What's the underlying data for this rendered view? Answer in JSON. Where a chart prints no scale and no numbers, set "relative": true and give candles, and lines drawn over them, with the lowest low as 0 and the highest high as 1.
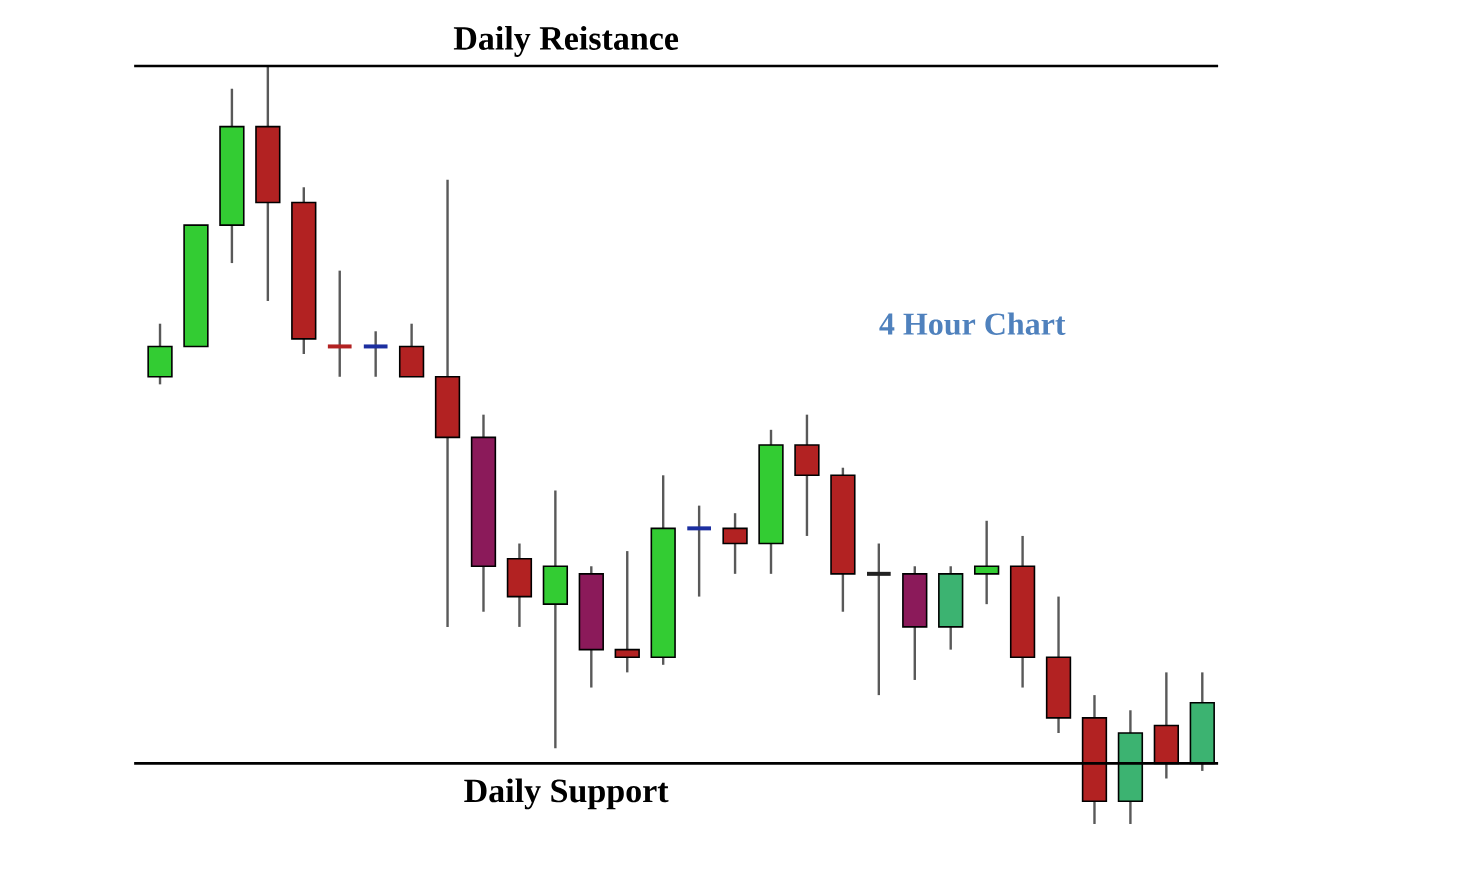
{
  "chart_data": {
    "type": "candlestick",
    "relative": true,
    "categories": [
      null,
      null,
      null,
      null,
      null,
      null,
      null,
      null,
      null,
      null,
      null,
      null,
      null,
      null,
      null,
      null,
      null,
      null,
      null,
      null,
      null,
      null,
      null,
      null,
      null,
      null,
      null,
      null,
      null,
      null
    ],
    "ohlc": [
      [
        0.59,
        0.66,
        0.58,
        0.63
      ],
      [
        0.63,
        0.79,
        0.63,
        0.79
      ],
      [
        0.79,
        0.97,
        0.74,
        0.92
      ],
      [
        0.92,
        1.0,
        0.69,
        0.82
      ],
      [
        0.82,
        0.84,
        0.62,
        0.64
      ],
      [
        0.63,
        0.73,
        0.59,
        0.63
      ],
      [
        0.63,
        0.65,
        0.59,
        0.63
      ],
      [
        0.63,
        0.66,
        0.59,
        0.59
      ],
      [
        0.59,
        0.85,
        0.26,
        0.51
      ],
      [
        0.51,
        0.54,
        0.28,
        0.34
      ],
      [
        0.35,
        0.37,
        0.26,
        0.3
      ],
      [
        0.29,
        0.44,
        0.1,
        0.34
      ],
      [
        0.33,
        0.34,
        0.18,
        0.23
      ],
      [
        0.23,
        0.36,
        0.2,
        0.22
      ],
      [
        0.22,
        0.46,
        0.21,
        0.39
      ],
      [
        0.39,
        0.42,
        0.3,
        0.39
      ],
      [
        0.39,
        0.41,
        0.33,
        0.37
      ],
      [
        0.37,
        0.52,
        0.33,
        0.5
      ],
      [
        0.5,
        0.54,
        0.38,
        0.46
      ],
      [
        0.46,
        0.47,
        0.28,
        0.33
      ],
      [
        0.33,
        0.37,
        0.17,
        0.33
      ],
      [
        0.33,
        0.34,
        0.19,
        0.26
      ],
      [
        0.26,
        0.34,
        0.23,
        0.33
      ],
      [
        0.33,
        0.4,
        0.29,
        0.34
      ],
      [
        0.34,
        0.38,
        0.18,
        0.22
      ],
      [
        0.22,
        0.3,
        0.12,
        0.14
      ],
      [
        0.14,
        0.17,
        0.0,
        0.03
      ],
      [
        0.03,
        0.15,
        0.0,
        0.12
      ],
      [
        0.13,
        0.2,
        0.06,
        0.08
      ],
      [
        0.08,
        0.2,
        0.07,
        0.16
      ]
    ],
    "colors": [
      "#33cc33",
      "#33cc33",
      "#33cc33",
      "#b22222",
      "#b22222",
      "#b22222",
      "#1c2fa0",
      "#b22222",
      "#b22222",
      "#8b1a5a",
      "#b22222",
      "#33cc33",
      "#8b1a5a",
      "#b22222",
      "#33cc33",
      "#1c2fa0",
      "#b22222",
      "#33cc33",
      "#b22222",
      "#b22222",
      "#222222",
      "#8b1a5a",
      "#3cb371",
      "#33cc33",
      "#b22222",
      "#b22222",
      "#b22222",
      "#3cb371",
      "#b22222",
      "#3cb371"
    ],
    "ref_lines": [
      {
        "axis": "y",
        "value": 1.0,
        "label": "Daily Reistance",
        "color": "#000000"
      },
      {
        "axis": "y",
        "value": 0.08,
        "label": "Daily Support",
        "color": "#000000"
      }
    ],
    "annotations": [
      "4 Hour Chart"
    ]
  }
}
